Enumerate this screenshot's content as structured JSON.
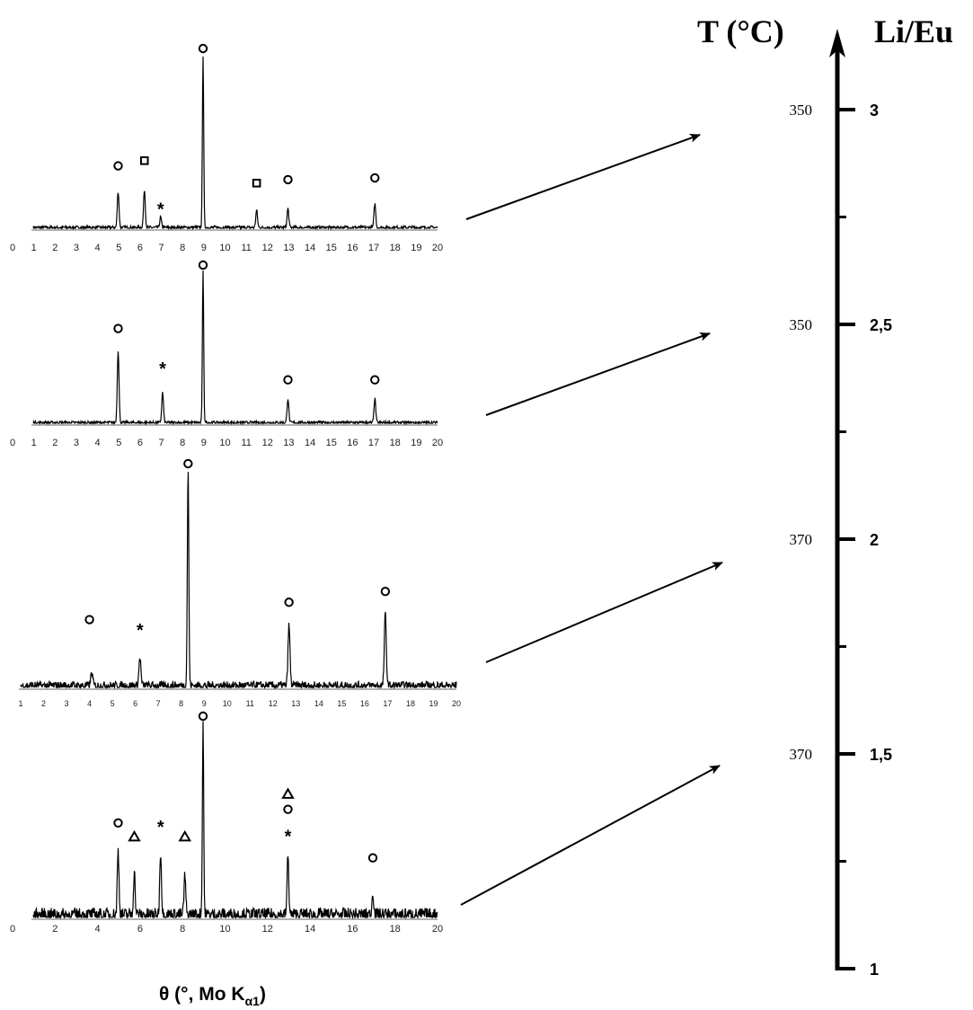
{
  "x_axis_label": "θ (°, Mo Kα1)",
  "x_axis_label_parts": {
    "main": "θ (°, Mo K",
    "sub": "α1",
    "end": ")"
  },
  "right_axis": {
    "temperature_header": "T (°C)",
    "ratio_header": "Li/Eu",
    "ratio_min": 1,
    "ratio_max": 3,
    "major_ticks": [
      {
        "ratio": 3,
        "ratio_label": "3",
        "temperature": "350"
      },
      {
        "ratio": 2.5,
        "ratio_label": "2,5",
        "temperature": "350"
      },
      {
        "ratio": 2,
        "ratio_label": "2",
        "temperature": "370"
      },
      {
        "ratio": 1.5,
        "ratio_label": "1,5",
        "temperature": "370"
      },
      {
        "ratio": 1,
        "ratio_label": "1",
        "temperature": ""
      }
    ],
    "minor_ticks": [
      2.75,
      2.25,
      1.75,
      1.25
    ]
  },
  "marker_legend_symbols": [
    "circle",
    "square",
    "asterisk",
    "triangle"
  ],
  "chart_data": [
    {
      "type": "line",
      "panel": 1,
      "links_to_ratio": 3,
      "xlim": [
        0,
        20
      ],
      "tick_labels": [
        "0",
        "1",
        "2",
        "3",
        "4",
        "5",
        "6",
        "7",
        "8",
        "9",
        "10",
        "11",
        "12",
        "13",
        "14",
        "15",
        "16",
        "17",
        "18",
        "19",
        "20"
      ],
      "noise_level": 0.02,
      "peaks": [
        {
          "x": 4.2,
          "height": 0.21
        },
        {
          "x": 5.5,
          "height": 0.22
        },
        {
          "x": 6.3,
          "height": 0.06
        },
        {
          "x": 8.4,
          "height": 1.0
        },
        {
          "x": 11.05,
          "height": 0.1
        },
        {
          "x": 12.6,
          "height": 0.11
        },
        {
          "x": 16.9,
          "height": 0.14
        }
      ],
      "markers": [
        {
          "symbol": "circle",
          "x": 4.2,
          "level": 0.32
        },
        {
          "symbol": "square",
          "x": 5.5,
          "level": 0.35
        },
        {
          "symbol": "asterisk",
          "x": 6.3,
          "level": 0.09
        },
        {
          "symbol": "circle",
          "x": 8.4,
          "level": 1.0
        },
        {
          "symbol": "square",
          "x": 11.05,
          "level": 0.22
        },
        {
          "symbol": "circle",
          "x": 12.6,
          "level": 0.24
        },
        {
          "symbol": "circle",
          "x": 16.9,
          "level": 0.25
        }
      ]
    },
    {
      "type": "line",
      "panel": 2,
      "links_to_ratio": 2.5,
      "xlim": [
        0,
        20
      ],
      "tick_labels": [
        "0",
        "1",
        "2",
        "3",
        "4",
        "5",
        "6",
        "7",
        "8",
        "9",
        "10",
        "11",
        "12",
        "13",
        "14",
        "15",
        "16",
        "17",
        "18",
        "19",
        "20"
      ],
      "noise_level": 0.02,
      "peaks": [
        {
          "x": 4.2,
          "height": 0.48
        },
        {
          "x": 6.4,
          "height": 0.2
        },
        {
          "x": 8.4,
          "height": 1.0
        },
        {
          "x": 12.6,
          "height": 0.16
        },
        {
          "x": 16.9,
          "height": 0.16
        }
      ],
      "markers": [
        {
          "symbol": "circle",
          "x": 4.2,
          "level": 0.58
        },
        {
          "symbol": "asterisk",
          "x": 6.4,
          "level": 0.34
        },
        {
          "symbol": "circle",
          "x": 8.4,
          "level": 1.0
        },
        {
          "symbol": "circle",
          "x": 12.6,
          "level": 0.24
        },
        {
          "symbol": "circle",
          "x": 16.9,
          "level": 0.24
        }
      ]
    },
    {
      "type": "line",
      "panel": 3,
      "links_to_ratio": 2,
      "xlim": [
        1,
        20
      ],
      "tick_labels": [
        "1",
        "2",
        "3",
        "4",
        "5",
        "6",
        "7",
        "8",
        "9",
        "10",
        "11",
        "12",
        "13",
        "14",
        "15",
        "16",
        "17",
        "18",
        "19",
        "20"
      ],
      "noise_level": 0.04,
      "peaks": [
        {
          "x": 4.1,
          "height": 0.06
        },
        {
          "x": 6.2,
          "height": 0.13
        },
        {
          "x": 8.3,
          "height": 1.0
        },
        {
          "x": 12.7,
          "height": 0.28
        },
        {
          "x": 16.9,
          "height": 0.33
        }
      ],
      "markers": [
        {
          "symbol": "circle",
          "x": 4.0,
          "level": 0.28
        },
        {
          "symbol": "asterisk",
          "x": 6.2,
          "level": 0.25
        },
        {
          "symbol": "circle",
          "x": 8.3,
          "level": 1.0
        },
        {
          "symbol": "circle",
          "x": 12.7,
          "level": 0.36
        },
        {
          "symbol": "circle",
          "x": 16.9,
          "level": 0.41
        }
      ]
    },
    {
      "type": "line",
      "panel": 4,
      "links_to_ratio": 1.5,
      "xlim": [
        0,
        20
      ],
      "tick_labels": [
        "0",
        "2",
        "4",
        "6",
        "8",
        "10",
        "12",
        "14",
        "16",
        "18",
        "20"
      ],
      "noise_level": 0.07,
      "peaks": [
        {
          "x": 4.2,
          "height": 0.33
        },
        {
          "x": 5.0,
          "height": 0.22
        },
        {
          "x": 6.3,
          "height": 0.33
        },
        {
          "x": 7.5,
          "height": 0.2
        },
        {
          "x": 8.4,
          "height": 1.0
        },
        {
          "x": 12.6,
          "height": 0.3
        },
        {
          "x": 16.8,
          "height": 0.12
        }
      ],
      "markers": [
        {
          "symbol": "circle",
          "x": 4.2,
          "level": 0.45
        },
        {
          "symbol": "triangle",
          "x": 5.0,
          "level": 0.38
        },
        {
          "symbol": "asterisk",
          "x": 6.3,
          "level": 0.45
        },
        {
          "symbol": "triangle",
          "x": 7.5,
          "level": 0.38
        },
        {
          "symbol": "circle",
          "x": 8.4,
          "level": 1.0
        },
        {
          "symbol": "asterisk",
          "x": 12.6,
          "level": 0.4
        },
        {
          "symbol": "circle",
          "x": 12.6,
          "level": 0.52
        },
        {
          "symbol": "triangle",
          "x": 12.6,
          "level": 0.6
        },
        {
          "symbol": "circle",
          "x": 16.8,
          "level": 0.27
        }
      ]
    }
  ]
}
